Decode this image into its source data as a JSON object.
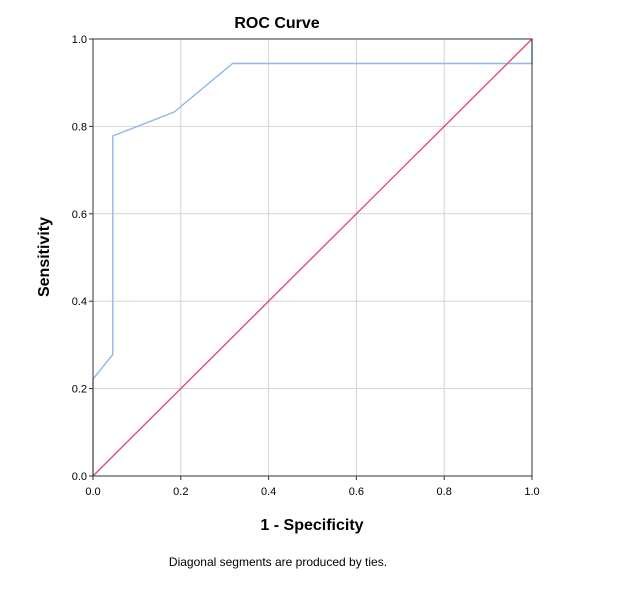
{
  "chart_data": {
    "type": "line",
    "title": "ROC Curve",
    "xlabel": "1 - Specificity",
    "ylabel": "Sensitivity",
    "xlim": [
      0,
      1
    ],
    "ylim": [
      0,
      1
    ],
    "x_ticks": [
      "0.0",
      "0.2",
      "0.4",
      "0.6",
      "0.8",
      "1.0"
    ],
    "y_ticks": [
      "0.0",
      "0.2",
      "0.4",
      "0.6",
      "0.8",
      "1.0"
    ],
    "grid": true,
    "legend": "none",
    "footnote": "Diagonal segments are produced by ties.",
    "series": [
      {
        "color": "#8fb8e8",
        "x": [
          0.0,
          0.0,
          0.045,
          0.045,
          0.185,
          0.318,
          1.0,
          1.0
        ],
        "y": [
          0.0,
          0.222,
          0.278,
          0.778,
          0.833,
          0.944,
          0.944,
          1.0
        ]
      },
      {
        "color": "#e0506e",
        "x": [
          0.0,
          1.0
        ],
        "y": [
          0.0,
          1.0
        ]
      }
    ]
  }
}
